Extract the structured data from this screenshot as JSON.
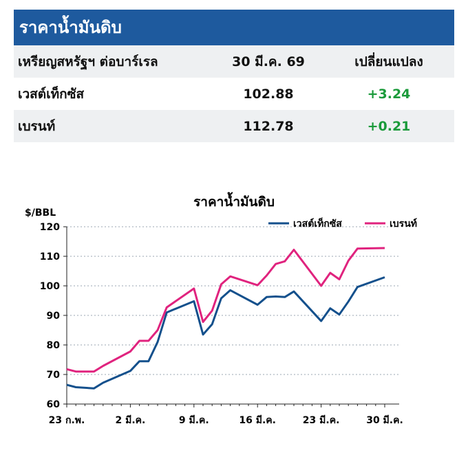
{
  "table": {
    "title": "ราคาน้ำมันดิบ",
    "headers": [
      "เหรียญสหรัฐฯ ต่อบาร์เรล",
      "30 มี.ค. 69",
      "เปลี่ยนแปลง"
    ],
    "rows": [
      {
        "name": "เวสต์เท็กซัส",
        "price": "102.88",
        "change": "+3.24"
      },
      {
        "name": "เบรนท์",
        "price": "112.78",
        "change": "+0.21"
      }
    ]
  },
  "colors": {
    "header_bg": "#1e5a9e",
    "positive": "#1a9a3a",
    "wti": "#14508c",
    "brent": "#e0237e"
  },
  "chart_data": {
    "type": "line",
    "title": "ราคาน้ำมันดิบ",
    "ylabel": "$/BBL",
    "ylim": [
      60,
      120
    ],
    "yticks": [
      "60",
      "70",
      "80",
      "90",
      "100",
      "110",
      "120"
    ],
    "x_ticks": [
      {
        "label": "23 ก.พ.",
        "day": 0
      },
      {
        "label": "2 มี.ค.",
        "day": 7
      },
      {
        "label": "9 มี.ค.",
        "day": 14
      },
      {
        "label": "16 มี.ค.",
        "day": 21
      },
      {
        "label": "23 มี.ค.",
        "day": 28
      },
      {
        "label": "30 มี.ค.",
        "day": 35
      }
    ],
    "legend_position": "top-right",
    "grid": "horizontal dotted",
    "series": [
      {
        "name": "เวสต์เท็กซัส",
        "color": "#14508c",
        "points": [
          [
            0,
            66.5
          ],
          [
            1,
            65.7
          ],
          [
            3,
            65.3
          ],
          [
            4,
            67.2
          ],
          [
            7,
            71.2
          ],
          [
            8,
            74.5
          ],
          [
            9,
            74.5
          ],
          [
            10,
            81
          ],
          [
            11,
            91
          ],
          [
            14,
            94.8
          ],
          [
            15,
            83.5
          ],
          [
            16,
            87
          ],
          [
            17,
            95.8
          ],
          [
            18,
            98.5
          ],
          [
            21,
            93.6
          ],
          [
            22,
            96.2
          ],
          [
            23,
            96.4
          ],
          [
            24,
            96.2
          ],
          [
            25,
            98.1
          ],
          [
            28,
            88.1
          ],
          [
            29,
            92.4
          ],
          [
            30,
            90.3
          ],
          [
            31,
            94.7
          ],
          [
            32,
            99.6
          ],
          [
            35,
            102.9
          ]
        ]
      },
      {
        "name": "เบรนท์",
        "color": "#e0237e",
        "points": [
          [
            0,
            71.8
          ],
          [
            1,
            71
          ],
          [
            3,
            71
          ],
          [
            4,
            72.9
          ],
          [
            7,
            77.8
          ],
          [
            8,
            81.4
          ],
          [
            9,
            81.4
          ],
          [
            10,
            85
          ],
          [
            11,
            92.7
          ],
          [
            14,
            99.1
          ],
          [
            15,
            87.8
          ],
          [
            16,
            91.6
          ],
          [
            17,
            100.5
          ],
          [
            18,
            103.2
          ],
          [
            21,
            100.2
          ],
          [
            22,
            103.5
          ],
          [
            23,
            107.4
          ],
          [
            24,
            108.3
          ],
          [
            25,
            112.2
          ],
          [
            28,
            100
          ],
          [
            29,
            104.4
          ],
          [
            30,
            102.2
          ],
          [
            31,
            108.5
          ],
          [
            32,
            112.6
          ],
          [
            35,
            112.8
          ]
        ]
      }
    ]
  }
}
